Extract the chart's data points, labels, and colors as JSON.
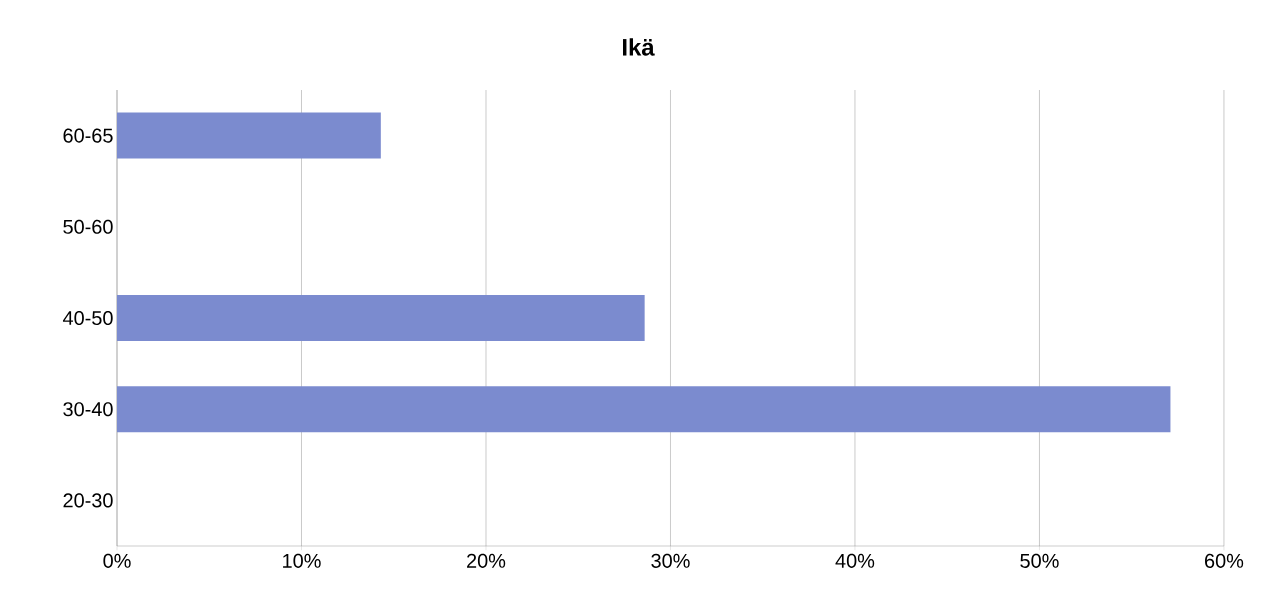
{
  "chart_data": {
    "type": "bar",
    "orientation": "horizontal",
    "title": "Ikä",
    "categories": [
      "60-65",
      "50-60",
      "40-50",
      "30-40",
      "20-30"
    ],
    "values": [
      14.3,
      0,
      28.6,
      57.1,
      0
    ],
    "color": "#7b8bcf",
    "xlim": [
      0,
      60
    ],
    "xticks": [
      {
        "value": 0,
        "label": "0%"
      },
      {
        "value": 10,
        "label": "10%"
      },
      {
        "value": 20,
        "label": "20%"
      },
      {
        "value": 30,
        "label": "30%"
      },
      {
        "value": 40,
        "label": "40%"
      },
      {
        "value": 50,
        "label": "50%"
      },
      {
        "value": 60,
        "label": "60%"
      }
    ],
    "grid": "x"
  }
}
